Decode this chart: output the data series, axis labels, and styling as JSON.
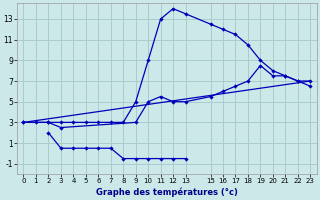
{
  "xlabel": "Graphe des températures (°c)",
  "background_color": "#cce8e8",
  "grid_color": "#aacccc",
  "line_color": "#0000bb",
  "xlim": [
    -0.5,
    23.5
  ],
  "ylim": [
    -2,
    14.5
  ],
  "xticks": [
    0,
    1,
    2,
    3,
    4,
    5,
    6,
    7,
    8,
    9,
    10,
    11,
    12,
    13,
    15,
    16,
    17,
    18,
    19,
    20,
    21,
    22,
    23
  ],
  "yticks": [
    -1,
    1,
    3,
    5,
    7,
    9,
    11,
    13
  ],
  "line1_x": [
    0,
    1,
    2,
    3,
    4,
    5,
    6,
    7,
    8,
    9,
    10,
    11,
    12,
    13,
    15,
    16,
    17,
    18,
    19,
    20,
    21,
    22,
    23
  ],
  "line1_y": [
    3,
    3,
    3,
    3,
    3,
    3,
    3,
    3,
    3,
    5,
    9,
    13,
    14,
    13.5,
    12.5,
    12,
    11.5,
    10.5,
    9,
    8,
    7.5,
    7,
    6.5
  ],
  "line2_x": [
    0,
    2,
    3,
    9,
    10,
    11,
    12,
    13,
    15,
    16,
    17,
    18,
    19,
    20,
    21,
    22,
    23
  ],
  "line2_y": [
    3,
    3,
    2.5,
    3,
    5,
    5.5,
    5,
    5,
    5.5,
    6,
    6.5,
    7,
    8.5,
    7.5,
    7.5,
    7,
    7
  ],
  "line3_x": [
    0,
    23
  ],
  "line3_y": [
    3,
    7
  ],
  "line4_x": [
    2,
    3,
    4,
    5,
    6,
    7,
    8,
    9,
    10,
    11,
    12,
    13
  ],
  "line4_y": [
    2,
    0.5,
    0.5,
    0.5,
    0.5,
    0.5,
    -0.5,
    -0.5,
    -0.5,
    -0.5,
    -0.5,
    -0.5
  ]
}
